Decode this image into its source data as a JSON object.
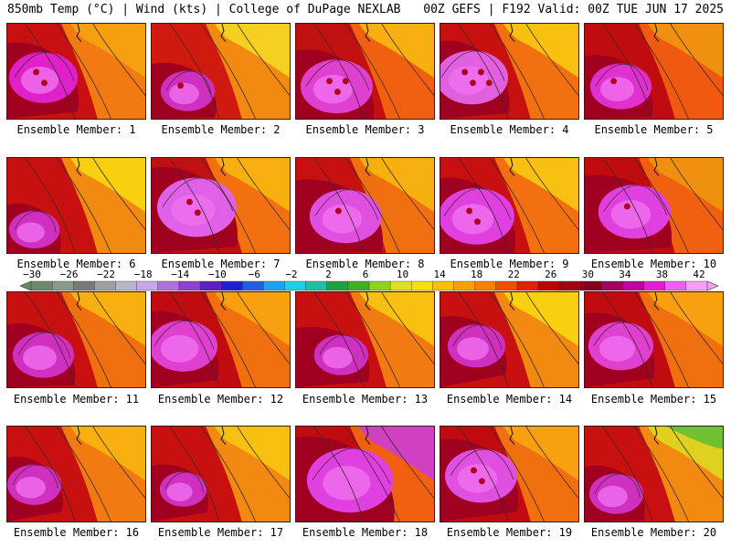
{
  "header": {
    "left": "850mb Temp (°C) | Wind (kts) | College of DuPage NEXLAB",
    "right": "00Z GEFS | F192 Valid: 00Z TUE JUN 17 2025"
  },
  "members": [
    "Ensemble Member: 1",
    "Ensemble Member: 2",
    "Ensemble Member: 3",
    "Ensemble Member: 4",
    "Ensemble Member: 5",
    "Ensemble Member: 6",
    "Ensemble Member: 7",
    "Ensemble Member: 8",
    "Ensemble Member: 9",
    "Ensemble Member: 10",
    "Ensemble Member: 11",
    "Ensemble Member: 12",
    "Ensemble Member: 13",
    "Ensemble Member: 14",
    "Ensemble Member: 15",
    "Ensemble Member: 16",
    "Ensemble Member: 17",
    "Ensemble Member: 18",
    "Ensemble Member: 19",
    "Ensemble Member: 20"
  ],
  "colorbar": {
    "labels": [
      "−30",
      "−26",
      "−22",
      "−18",
      "−14",
      "−10",
      "−6",
      "−2",
      "2",
      "6",
      "10",
      "14",
      "18",
      "22",
      "26",
      "30",
      "34",
      "38",
      "42"
    ],
    "colors": [
      "#6d8a6d",
      "#8a9a8a",
      "#7a7a7a",
      "#a0a0a0",
      "#b8b8c8",
      "#c8a8e8",
      "#b070e0",
      "#9040d0",
      "#6020c0",
      "#2020d0",
      "#2060e0",
      "#20a0f0",
      "#20d0e0",
      "#20c0a0",
      "#20a040",
      "#40b020",
      "#90d020",
      "#e0e020",
      "#f8e000",
      "#f8c000",
      "#f8a000",
      "#f88000",
      "#f05000",
      "#e02000",
      "#c00000",
      "#a00010",
      "#800020",
      "#a00060",
      "#c000a0",
      "#e020d0",
      "#f060f0",
      "#f8a0f8"
    ]
  }
}
